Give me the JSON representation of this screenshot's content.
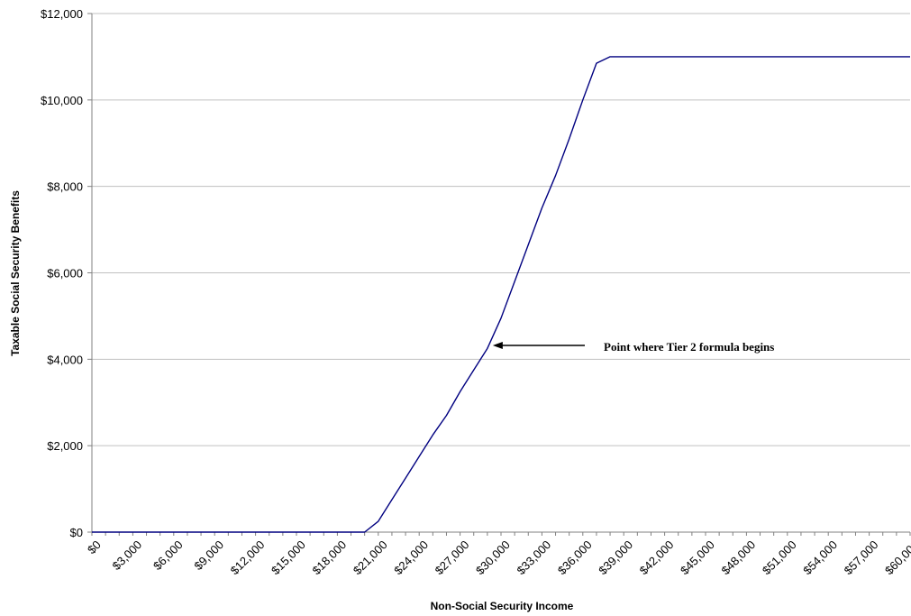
{
  "chart_data": {
    "type": "line",
    "title": "",
    "xlabel": "Non-Social Security Income",
    "ylabel": "Taxable Social Security Benefits",
    "xlim": [
      0,
      60000
    ],
    "ylim": [
      0,
      12000
    ],
    "grid": "horizontal",
    "legend": "none",
    "colors": {
      "line": "#000080",
      "grid": "#c0c0c0",
      "axis": "#808080"
    },
    "x_tick_labels": [
      "$0",
      "$3,000",
      "$6,000",
      "$9,000",
      "$12,000",
      "$15,000",
      "$18,000",
      "$21,000",
      "$24,000",
      "$27,000",
      "$30,000",
      "$33,000",
      "$36,000",
      "$39,000",
      "$42,000",
      "$45,000",
      "$48,000",
      "$51,000",
      "$54,000",
      "$57,000",
      "$60,000"
    ],
    "x_tick_values": [
      0,
      3000,
      6000,
      9000,
      12000,
      15000,
      18000,
      21000,
      24000,
      27000,
      30000,
      33000,
      36000,
      39000,
      42000,
      45000,
      48000,
      51000,
      54000,
      57000,
      60000
    ],
    "y_tick_labels": [
      "$0",
      "$2,000",
      "$4,000",
      "$6,000",
      "$8,000",
      "$10,000",
      "$12,000"
    ],
    "y_tick_values": [
      0,
      2000,
      4000,
      6000,
      8000,
      10000,
      12000
    ],
    "series": [
      {
        "x": [
          0,
          1000,
          2000,
          3000,
          4000,
          5000,
          6000,
          7000,
          8000,
          9000,
          10000,
          11000,
          12000,
          13000,
          14000,
          15000,
          16000,
          17000,
          18000,
          19000,
          20000,
          21000,
          22000,
          23000,
          24000,
          25000,
          26000,
          27000,
          28000,
          29000,
          30000,
          31000,
          32000,
          33000,
          34000,
          35000,
          36000,
          37000,
          38000,
          39000,
          40000,
          41000,
          42000,
          43000,
          44000,
          45000,
          46000,
          47000,
          48000,
          49000,
          50000,
          51000,
          52000,
          53000,
          54000,
          55000,
          56000,
          57000,
          58000,
          59000,
          60000
        ],
        "values": [
          0,
          0,
          0,
          0,
          0,
          0,
          0,
          0,
          0,
          0,
          0,
          0,
          0,
          0,
          0,
          0,
          0,
          0,
          0,
          0,
          0,
          250,
          750,
          1250,
          1750,
          2250,
          2700,
          3250,
          3750,
          4250,
          4950,
          5800,
          6650,
          7500,
          8250,
          9100,
          10000,
          10850,
          11000,
          11000,
          11000,
          11000,
          11000,
          11000,
          11000,
          11000,
          11000,
          11000,
          11000,
          11000,
          11000,
          11000,
          11000,
          11000,
          11000,
          11000,
          11000,
          11000,
          11000,
          11000,
          11000
        ]
      }
    ],
    "annotations": [
      {
        "text": "Point where Tier 2 formula begins",
        "x": 29000,
        "y": 4300,
        "arrow": true
      }
    ]
  }
}
